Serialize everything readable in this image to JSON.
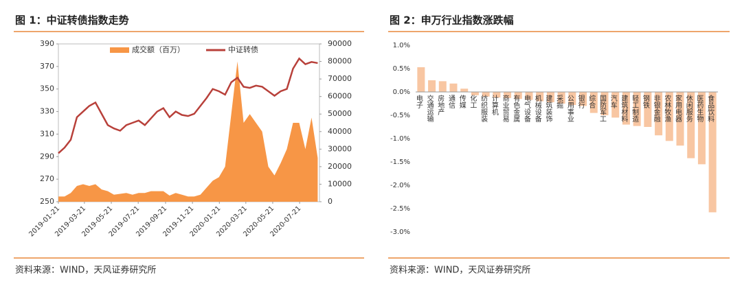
{
  "chart_data": [
    {
      "type": "line",
      "title": "图 1：中证转债指数走势",
      "source": "资料来源：WIND，天风证券研究所",
      "x": [
        "2019-01-21",
        "2019-02-04",
        "2019-02-18",
        "2019-03-04",
        "2019-03-18",
        "2019-04-01",
        "2019-04-15",
        "2019-04-29",
        "2019-05-13",
        "2019-05-27",
        "2019-06-10",
        "2019-06-24",
        "2019-07-08",
        "2019-07-22",
        "2019-08-05",
        "2019-08-19",
        "2019-09-02",
        "2019-09-16",
        "2019-09-30",
        "2019-10-14",
        "2019-10-28",
        "2019-11-11",
        "2019-11-25",
        "2019-12-09",
        "2019-12-23",
        "2020-01-06",
        "2020-01-20",
        "2020-02-03",
        "2020-02-17",
        "2020-03-02",
        "2020-03-16",
        "2020-03-30",
        "2020-04-13",
        "2020-04-27",
        "2020-05-11",
        "2020-05-25",
        "2020-06-08",
        "2020-06-22",
        "2020-07-06",
        "2020-07-20",
        "2020-08-03",
        "2020-08-17",
        "2020-08-31"
      ],
      "series": [
        {
          "name": "成交额（百万）",
          "type": "area",
          "color": "#f79646",
          "axis": "y2",
          "values": [
            3000,
            3000,
            5000,
            9000,
            10000,
            9000,
            10000,
            7000,
            6000,
            4000,
            4500,
            5000,
            4000,
            5000,
            5000,
            6000,
            6000,
            6000,
            3500,
            5000,
            4000,
            3000,
            3000,
            4000,
            8000,
            12000,
            14000,
            20000,
            50000,
            80000,
            45000,
            50000,
            45000,
            40000,
            20000,
            15000,
            22000,
            30000,
            45000,
            45000,
            30000,
            48000,
            25000
          ]
        },
        {
          "name": "中证转债",
          "type": "line",
          "color": "#b8403a",
          "values": [
            293,
            298,
            305,
            325,
            330,
            335,
            338,
            328,
            318,
            315,
            313,
            318,
            320,
            322,
            318,
            324,
            330,
            333,
            325,
            330,
            327,
            326,
            328,
            335,
            342,
            350,
            348,
            345,
            356,
            360,
            352,
            351,
            353,
            352,
            348,
            344,
            348,
            350,
            368,
            377,
            372,
            374,
            373
          ]
        }
      ],
      "xlim": [
        "2019-01-21",
        "2020-09-04"
      ],
      "xticks": [
        "2019-01-21",
        "2019-03-21",
        "2019-05-21",
        "2019-07-21",
        "2019-09-21",
        "2019-11-21",
        "2020-01-21",
        "2020-03-21",
        "2020-05-21",
        "2020-07-21"
      ],
      "ylim": [
        250,
        390
      ],
      "yticks": [
        250,
        270,
        290,
        310,
        330,
        350,
        370,
        390
      ],
      "y2lim": [
        0,
        90000
      ],
      "y2ticks": [
        0,
        10000,
        20000,
        30000,
        40000,
        50000,
        60000,
        70000,
        80000,
        90000
      ],
      "legend": "top"
    },
    {
      "type": "bar",
      "title": "图 2：申万行业指数涨跌幅",
      "source": "资料来源：WIND，天风证券研究所",
      "color": "#f8c6a2",
      "categories": [
        "电子",
        "交通运输",
        "房地产",
        "通信",
        "传媒",
        "化工",
        "纺织服装",
        "计算机",
        "商业贸易",
        "有色金属",
        "电气设备",
        "机械设备",
        "建筑装饰",
        "采掘",
        "公用事业",
        "银行",
        "综合",
        "国防军工",
        "汽车",
        "建筑材料",
        "轻工制造",
        "钢铁",
        "非银金融",
        "农林牧渔",
        "家用电器",
        "休闲服务",
        "医药生物",
        "食品饮料"
      ],
      "values": [
        0.53,
        0.25,
        0.23,
        0.18,
        0.07,
        -0.07,
        -0.1,
        -0.12,
        -0.13,
        -0.15,
        -0.17,
        -0.2,
        -0.22,
        -0.25,
        -0.28,
        -0.3,
        -0.45,
        -0.5,
        -0.55,
        -0.7,
        -0.73,
        -0.75,
        -0.93,
        -1.05,
        -1.15,
        -1.42,
        -1.55,
        -2.58
      ],
      "ylim": [
        -3,
        1
      ],
      "yticks": [
        {
          "value": 1,
          "label": "1.0%"
        },
        {
          "value": 0.5,
          "label": "0.5%"
        },
        {
          "value": 0,
          "label": "0.0%"
        },
        {
          "value": -0.5,
          "label": "-0.5%"
        },
        {
          "value": -1,
          "label": "-1.0%"
        },
        {
          "value": -1.5,
          "label": "-1.5%"
        },
        {
          "value": -2,
          "label": "-2.0%"
        },
        {
          "value": -2.5,
          "label": "-2.5%"
        },
        {
          "value": -3,
          "label": "-3.0%"
        }
      ]
    }
  ]
}
